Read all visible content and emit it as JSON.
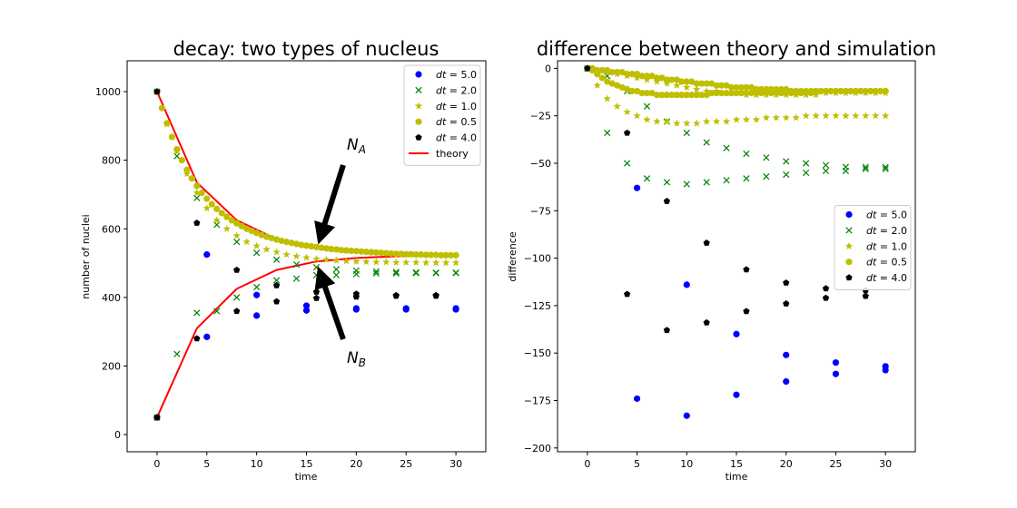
{
  "chart_data": [
    {
      "type": "scatter",
      "title": "decay: two types of nucleus",
      "xlabel": "time",
      "ylabel": "number of nuclei",
      "xlim": [
        -3,
        33
      ],
      "ylim": [
        -50,
        1090
      ],
      "xticks": [
        0,
        5,
        10,
        15,
        20,
        25,
        30
      ],
      "yticks": [
        0,
        200,
        400,
        600,
        800,
        1000
      ],
      "grid": false,
      "legend_placement": "top-right",
      "annotations": [
        {
          "label": "N",
          "sub": "A"
        },
        {
          "label": "N",
          "sub": "B"
        }
      ],
      "series": [
        {
          "name": "dt = 5.0",
          "marker": "circle",
          "color": "#0000ff",
          "x": [
            0,
            5,
            10,
            15,
            20,
            25,
            30,
            0,
            5,
            10,
            15,
            20,
            25,
            30
          ],
          "y": [
            1000,
            525,
            407,
            376,
            368,
            368,
            368,
            50,
            285,
            347,
            362,
            365,
            365,
            365
          ]
        },
        {
          "name": "dt = 2.0",
          "marker": "x",
          "color": "#008000",
          "x": [
            0,
            2,
            4,
            6,
            8,
            10,
            12,
            14,
            16,
            18,
            20,
            22,
            24,
            26,
            28,
            30,
            0,
            2,
            4,
            6,
            8,
            10,
            12,
            14,
            16,
            18,
            20,
            22,
            24,
            26,
            28,
            30
          ],
          "y": [
            1000,
            812,
            690,
            612,
            562,
            530,
            510,
            496,
            488,
            482,
            478,
            476,
            474,
            473,
            472,
            472,
            50,
            235,
            355,
            360,
            400,
            430,
            450,
            455,
            465,
            465,
            468,
            470,
            470,
            471,
            471,
            471
          ]
        },
        {
          "name": "dt = 1.0",
          "marker": "star",
          "color": "#bfbf00",
          "x": [
            0,
            1,
            2,
            3,
            4,
            5,
            6,
            7,
            8,
            9,
            10,
            11,
            12,
            13,
            14,
            15,
            16,
            17,
            18,
            19,
            20,
            21,
            22,
            23,
            24,
            25,
            26,
            27,
            28,
            29,
            30
          ],
          "y": [
            1000,
            905,
            825,
            760,
            705,
            660,
            625,
            600,
            580,
            562,
            550,
            540,
            532,
            525,
            520,
            516,
            512,
            510,
            508,
            506,
            505,
            504,
            503,
            503,
            502,
            502,
            502,
            501,
            501,
            501,
            501
          ]
        },
        {
          "name": "dt = 0.5",
          "marker": "circle",
          "color": "#bfbf00",
          "x": [
            0,
            0.5,
            1,
            1.5,
            2,
            2.5,
            3,
            3.5,
            4,
            4.5,
            5,
            5.5,
            6,
            6.5,
            7,
            7.5,
            8,
            8.5,
            9,
            9.5,
            10,
            10.5,
            11,
            11.5,
            12,
            12.5,
            13,
            13.5,
            14,
            14.5,
            15,
            15.5,
            16,
            16.5,
            17,
            17.5,
            18,
            18.5,
            19,
            19.5,
            20,
            20.5,
            21,
            21.5,
            22,
            22.5,
            23,
            23.5,
            24,
            24.5,
            25,
            25.5,
            26,
            26.5,
            27,
            27.5,
            28,
            28.5,
            29,
            29.5,
            30
          ],
          "y": [
            1000,
            952,
            908,
            868,
            832,
            800,
            772,
            747,
            725,
            705,
            688,
            672,
            658,
            646,
            635,
            625,
            616,
            608,
            600,
            594,
            588,
            582,
            577,
            573,
            569,
            565,
            562,
            559,
            556,
            553,
            551,
            549,
            547,
            545,
            543,
            541,
            540,
            538,
            537,
            536,
            535,
            534,
            533,
            532,
            531,
            530,
            529,
            528,
            527,
            527,
            526,
            526,
            525,
            525,
            524,
            524,
            524,
            523,
            523,
            523,
            523
          ]
        },
        {
          "name": "dt = 4.0",
          "marker": "pentagon",
          "color": "#000000",
          "x": [
            0,
            4,
            8,
            12,
            16,
            20,
            24,
            28,
            0,
            4,
            8,
            12,
            16,
            20,
            24,
            28
          ],
          "y": [
            1000,
            617,
            480,
            435,
            416,
            410,
            406,
            406,
            50,
            280,
            360,
            388,
            398,
            402,
            404,
            404
          ]
        }
      ],
      "theory": {
        "name": "theory",
        "color": "#ff0000",
        "x": [
          0,
          4,
          8,
          12,
          16,
          20,
          24,
          28
        ],
        "upper": [
          1000,
          735,
          625,
          570,
          545,
          535,
          530,
          527
        ],
        "lower": [
          50,
          310,
          425,
          480,
          505,
          515,
          520,
          522
        ]
      }
    },
    {
      "type": "scatter",
      "title": "difference between theory and simulation",
      "xlabel": "time",
      "ylabel": "difference",
      "xlim": [
        -3,
        33
      ],
      "ylim": [
        -202,
        4
      ],
      "xticks": [
        0,
        5,
        10,
        15,
        20,
        25,
        30
      ],
      "yticks": [
        0,
        -25,
        -50,
        -75,
        -100,
        -125,
        -150,
        -175,
        -200
      ],
      "grid": false,
      "legend_placement": "center-right",
      "series": [
        {
          "name": "dt = 5.0",
          "marker": "circle",
          "color": "#0000ff",
          "x": [
            0,
            5,
            10,
            15,
            20,
            25,
            30,
            5,
            10,
            15,
            20,
            25,
            30
          ],
          "y": [
            0,
            -63,
            -114,
            -140,
            -151,
            -155,
            -157,
            -174,
            -183,
            -172,
            -165,
            -161,
            -159
          ]
        },
        {
          "name": "dt = 2.0",
          "marker": "x",
          "color": "#008000",
          "x": [
            0,
            2,
            4,
            6,
            8,
            10,
            12,
            14,
            16,
            18,
            20,
            22,
            24,
            26,
            28,
            30,
            2,
            4,
            6,
            8,
            10,
            12,
            14,
            16,
            18,
            20,
            22,
            24,
            26,
            28,
            30
          ],
          "y": [
            0,
            -4,
            -12,
            -20,
            -28,
            -34,
            -39,
            -42,
            -45,
            -47,
            -49,
            -50,
            -51,
            -52,
            -52,
            -52,
            -34,
            -50,
            -58,
            -60,
            -61,
            -60,
            -59,
            -58,
            -57,
            -56,
            -55,
            -54,
            -54,
            -53,
            -53
          ]
        },
        {
          "name": "dt = 1.0",
          "marker": "star",
          "color": "#bfbf00",
          "x": [
            0,
            1,
            2,
            3,
            4,
            5,
            6,
            7,
            8,
            9,
            10,
            11,
            12,
            13,
            14,
            15,
            16,
            17,
            18,
            19,
            20,
            21,
            22,
            23,
            24,
            25,
            26,
            27,
            28,
            29,
            30,
            1,
            2,
            3,
            4,
            5,
            6,
            7,
            8,
            9,
            10,
            11,
            12,
            13,
            14,
            15,
            16,
            17,
            18,
            19,
            20,
            21,
            22,
            23,
            24,
            25,
            26,
            27,
            28,
            29,
            30
          ],
          "y": [
            0,
            -1,
            -2,
            -3,
            -4,
            -5,
            -6,
            -7,
            -8,
            -9,
            -10,
            -11,
            -12,
            -12,
            -13,
            -13,
            -14,
            -14,
            -14,
            -14,
            -14,
            -14,
            -14,
            -14,
            -13,
            -13,
            -13,
            -13,
            -13,
            -13,
            -13,
            -9,
            -16,
            -20,
            -23,
            -25,
            -27,
            -28,
            -28,
            -29,
            -29,
            -29,
            -28,
            -28,
            -28,
            -27,
            -27,
            -27,
            -26,
            -26,
            -26,
            -26,
            -25,
            -25,
            -25,
            -25,
            -25,
            -25,
            -25,
            -25,
            -25
          ]
        },
        {
          "name": "dt = 0.5",
          "marker": "circle",
          "color": "#bfbf00",
          "x": [
            0,
            0.5,
            1,
            1.5,
            2,
            2.5,
            3,
            3.5,
            4,
            4.5,
            5,
            5.5,
            6,
            6.5,
            7,
            7.5,
            8,
            8.5,
            9,
            9.5,
            10,
            10.5,
            11,
            11.5,
            12,
            12.5,
            13,
            13.5,
            14,
            14.5,
            15,
            15.5,
            16,
            16.5,
            17,
            17.5,
            18,
            18.5,
            19,
            19.5,
            20,
            20.5,
            21,
            21.5,
            22,
            22.5,
            23,
            23.5,
            24,
            24.5,
            25,
            25.5,
            26,
            26.5,
            27,
            27.5,
            28,
            28.5,
            29,
            29.5,
            30,
            0.5,
            1,
            1.5,
            2,
            2.5,
            3,
            3.5,
            4,
            4.5,
            5,
            5.5,
            6,
            6.5,
            7,
            7.5,
            8,
            8.5,
            9,
            9.5,
            10,
            10.5,
            11,
            11.5,
            12,
            12.5,
            13,
            13.5,
            14,
            14.5,
            15,
            15.5,
            16,
            16.5,
            17,
            17.5,
            18,
            18.5,
            19,
            19.5,
            20,
            20.5,
            21,
            21.5,
            22,
            22.5,
            23,
            23.5,
            24,
            24.5,
            25,
            25.5,
            26,
            26.5,
            27,
            27.5,
            28,
            28.5,
            29,
            29.5,
            30
          ],
          "y": [
            0,
            0,
            -1,
            -1,
            -1,
            -2,
            -2,
            -2,
            -3,
            -3,
            -3,
            -4,
            -4,
            -4,
            -5,
            -5,
            -6,
            -6,
            -6,
            -7,
            -7,
            -7,
            -8,
            -8,
            -8,
            -8,
            -9,
            -9,
            -9,
            -10,
            -10,
            -10,
            -10,
            -10,
            -11,
            -11,
            -11,
            -11,
            -11,
            -11,
            -11,
            -12,
            -12,
            -12,
            -12,
            -12,
            -12,
            -12,
            -12,
            -12,
            -12,
            -12,
            -12,
            -12,
            -12,
            -12,
            -12,
            -12,
            -12,
            -12,
            -12,
            -1,
            -3,
            -5,
            -7,
            -8,
            -9,
            -10,
            -11,
            -12,
            -12,
            -13,
            -13,
            -13,
            -14,
            -14,
            -14,
            -14,
            -14,
            -14,
            -14,
            -14,
            -14,
            -14,
            -14,
            -13,
            -13,
            -13,
            -13,
            -13,
            -13,
            -13,
            -13,
            -13,
            -13,
            -13,
            -13,
            -13,
            -13,
            -13,
            -13,
            -13,
            -13,
            -13,
            -13,
            -13,
            -12,
            -12,
            -12,
            -12,
            -12,
            -12,
            -12,
            -12,
            -12,
            -12,
            -12,
            -12,
            -12,
            -12,
            -12
          ]
        },
        {
          "name": "dt = 4.0",
          "marker": "pentagon",
          "color": "#000000",
          "x": [
            0,
            4,
            8,
            12,
            16,
            20,
            24,
            28,
            4,
            8,
            12,
            16,
            20,
            24,
            28
          ],
          "y": [
            0,
            -34,
            -70,
            -92,
            -106,
            -113,
            -116,
            -117,
            -119,
            -138,
            -134,
            -128,
            -124,
            -121,
            -120
          ]
        }
      ]
    }
  ]
}
